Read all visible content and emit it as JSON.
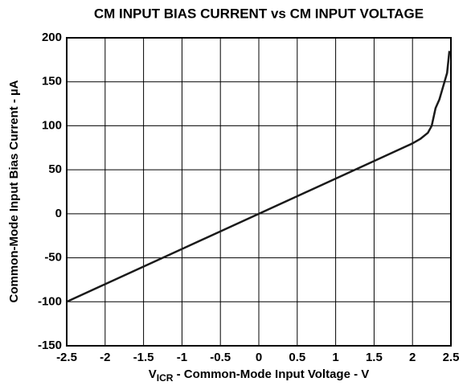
{
  "chart_data": {
    "type": "line",
    "title": "CM INPUT BIAS CURRENT vs CM INPUT VOLTAGE",
    "x_label": [
      "V",
      "ICR",
      " - Common-Mode Input Voltage - V"
    ],
    "y_label": "Common-Mode Input Bias Current - µA",
    "x": [
      -2.5,
      -2,
      -1.5,
      -1,
      -0.5,
      0,
      0.5,
      1,
      1.5,
      2,
      2.1,
      2.2,
      2.25,
      2.3,
      2.35,
      2.4,
      2.45,
      2.48
    ],
    "series": [
      {
        "name": "Bias Current",
        "color": "#1a1a1a",
        "values": [
          -100,
          -80,
          -60,
          -40,
          -20,
          0,
          20,
          40,
          60,
          80,
          85,
          92,
          100,
          120,
          130,
          145,
          160,
          185
        ]
      }
    ],
    "xlim": [
      -2.5,
      2.5
    ],
    "xticks": [
      -2.5,
      -2,
      -1.5,
      -1,
      -0.5,
      0,
      0.5,
      1,
      1.5,
      2,
      2.5
    ],
    "ylim": [
      -150,
      200
    ],
    "yticks": [
      -150,
      -100,
      -50,
      0,
      50,
      100,
      150,
      200
    ],
    "grid": true
  }
}
